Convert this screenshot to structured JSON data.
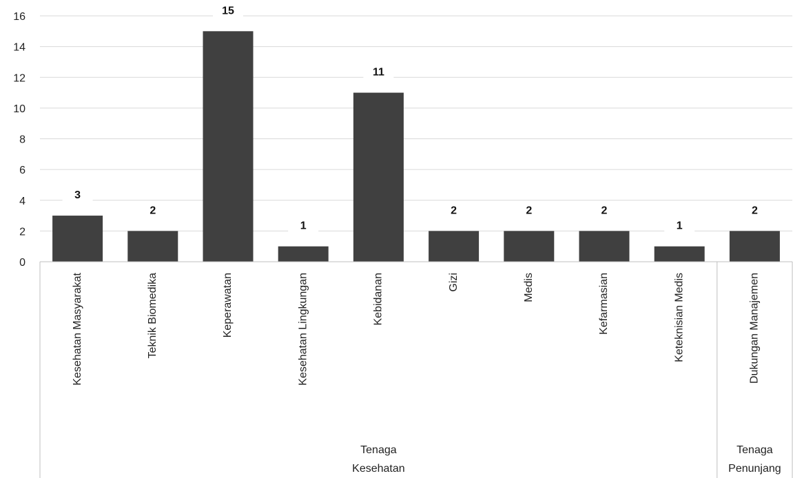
{
  "chart_data": {
    "type": "bar",
    "categories": [
      "Kesehatan Masyarakat",
      "Teknik Biomedika",
      "Keperawatan",
      "Kesehatan Lingkungan",
      "Kebidanan",
      "Gizi",
      "Medis",
      "Kefarmasian",
      "Keteknisian Medis",
      "Dukungan Manajemen"
    ],
    "values": [
      3,
      2,
      15,
      1,
      11,
      2,
      2,
      2,
      1,
      2
    ],
    "groups": [
      {
        "lines": [
          "Tenaga",
          "Kesehatan"
        ],
        "count": 9
      },
      {
        "lines": [
          "Tenaga",
          "Penunjang"
        ],
        "count": 1
      }
    ],
    "ylim": [
      0,
      16
    ],
    "yticks": [
      0,
      2,
      4,
      6,
      8,
      10,
      12,
      14,
      16
    ],
    "title": "",
    "xlabel": "",
    "ylabel": "",
    "grid": true,
    "data_labels": true,
    "legend": "none",
    "colors": {
      "bar": "#404040",
      "grid": "#d9d9d9",
      "axis": "#bfbfbf",
      "text": "#222222"
    }
  }
}
